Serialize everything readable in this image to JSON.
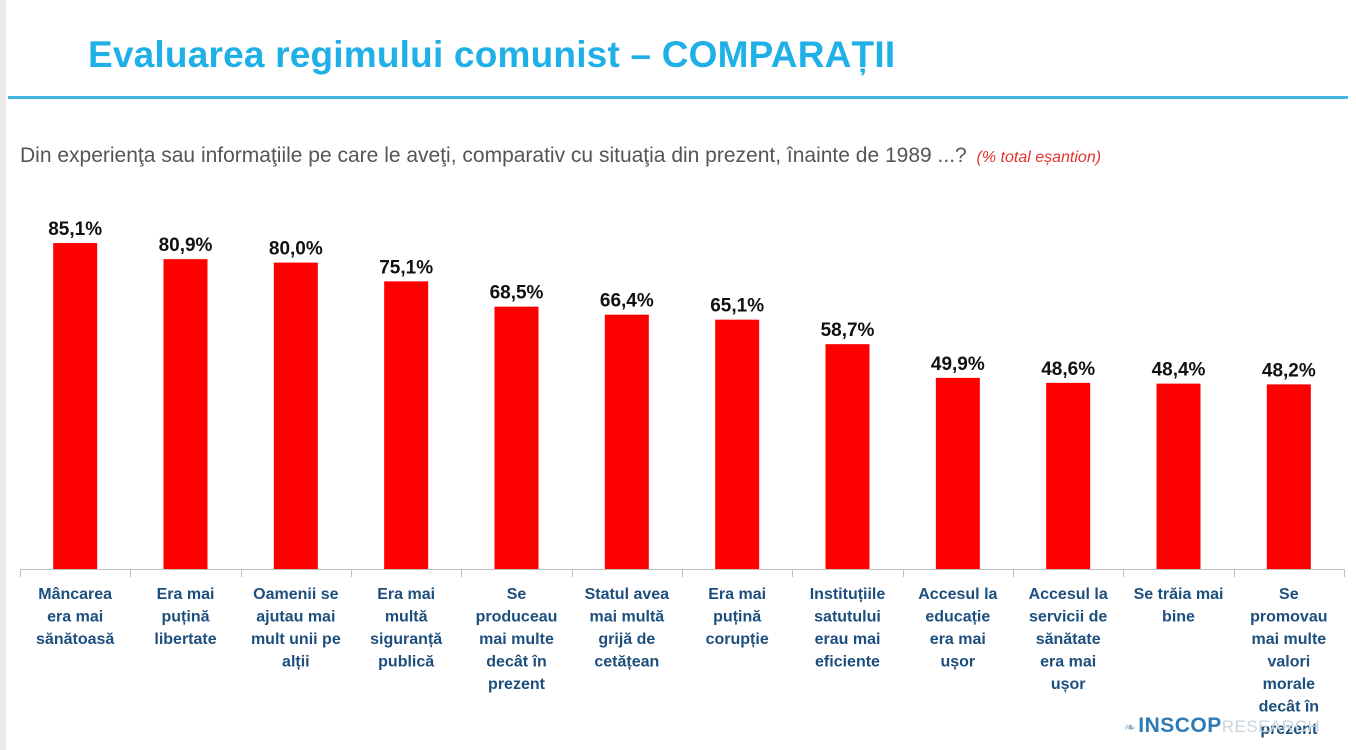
{
  "title": "Evaluarea regimului comunist – COMPARAȚII",
  "question": "Din experienţa sau informaţiile pe care le aveţi, comparativ cu situaţia din prezent, înainte de 1989 ...?",
  "question_note": "(% total eșantion)",
  "logo": {
    "name": "INSCOP",
    "sub": "RESEARCH",
    "icon": "leaf-icon"
  },
  "colors": {
    "bar": "#ff0000",
    "title": "#1eb0e6",
    "category_text": "#1d4f7e",
    "note": "#e0322e"
  },
  "chart_data": {
    "type": "bar",
    "categories": [
      [
        "Mâncarea",
        "era mai",
        "sănătoasă"
      ],
      [
        "Era mai",
        "puțină",
        "libertate"
      ],
      [
        "Oamenii se",
        "ajutau mai",
        "mult unii pe",
        "alții"
      ],
      [
        "Era mai",
        "multă",
        "siguranță",
        "publică"
      ],
      [
        "Se",
        "produceau",
        "mai multe",
        "decât în",
        "prezent"
      ],
      [
        "Statul avea",
        "mai multă",
        "grijă de",
        "cetățean"
      ],
      [
        "Era mai",
        "puțină",
        "corupție"
      ],
      [
        "Instituțiile",
        "satutului",
        "erau mai",
        "eficiente"
      ],
      [
        "Accesul la",
        "educație",
        "era mai",
        "ușor"
      ],
      [
        "Accesul la",
        "servicii de",
        "sănătate",
        "era mai",
        "ușor"
      ],
      [
        "Se trăia mai",
        "bine"
      ],
      [
        "Se",
        "promovau",
        "mai multe",
        "valori",
        "morale",
        "decât în",
        "prezent"
      ]
    ],
    "values": [
      85.1,
      80.9,
      80.0,
      75.1,
      68.5,
      66.4,
      65.1,
      58.7,
      49.9,
      48.6,
      48.4,
      48.2
    ],
    "value_labels": [
      "85,1%",
      "80,9%",
      "80,0%",
      "75,1%",
      "68,5%",
      "66,4%",
      "65,1%",
      "58,7%",
      "49,9%",
      "48,6%",
      "48,4%",
      "48,2%"
    ],
    "ylim": [
      0,
      100
    ],
    "grid": false,
    "legend": "none"
  }
}
